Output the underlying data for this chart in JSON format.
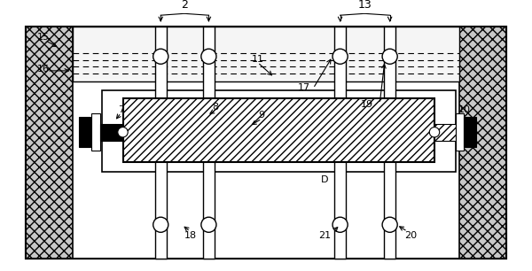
{
  "fig_width": 6.0,
  "fig_height": 3.06,
  "dpi": 100,
  "bg_color": "#ffffff",
  "line_color": "#000000",
  "gray_fill": "#d0d0d0",
  "white": "#ffffff"
}
